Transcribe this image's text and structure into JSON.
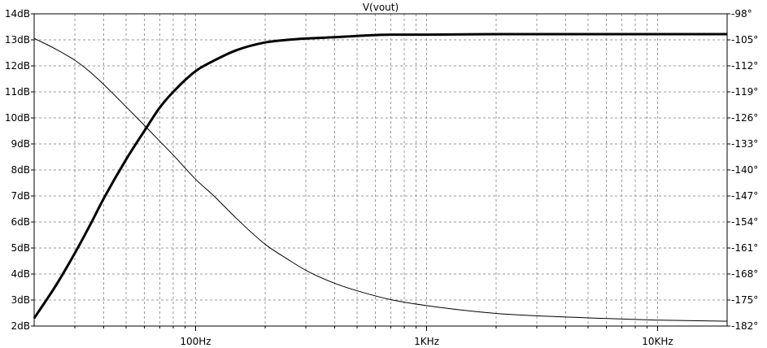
{
  "chart_data": {
    "type": "line",
    "title": "V(vout)",
    "x_scale": "log",
    "xlim": [
      20,
      20000
    ],
    "grid": true,
    "x_tick_labels": [
      {
        "value": 100,
        "label": "100Hz"
      },
      {
        "value": 1000,
        "label": "1KHz"
      },
      {
        "value": 10000,
        "label": "10KHz"
      }
    ],
    "y_left": {
      "ylim": [
        2,
        14
      ],
      "ticks": [
        2,
        3,
        4,
        5,
        6,
        7,
        8,
        9,
        10,
        11,
        12,
        13,
        14
      ],
      "tick_labels": [
        "2dB",
        "3dB",
        "4dB",
        "5dB",
        "6dB",
        "7dB",
        "8dB",
        "9dB",
        "10dB",
        "11dB",
        "12dB",
        "13dB",
        "14dB"
      ]
    },
    "y_right": {
      "ylim": [
        -182,
        -98
      ],
      "ticks": [
        -182,
        -175,
        -168,
        -161,
        -154,
        -147,
        -140,
        -133,
        -126,
        -119,
        -112,
        -105,
        -98
      ],
      "tick_labels": [
        "-182°",
        "-175°",
        "-168°",
        "-161°",
        "-154°",
        "-147°",
        "-140°",
        "-133°",
        "-126°",
        "-119°",
        "-112°",
        "-105°",
        "-98°"
      ]
    },
    "series": [
      {
        "axis": "left",
        "style": "thick",
        "x": [
          20,
          25,
          30,
          35,
          40,
          50,
          60,
          70,
          80,
          100,
          120,
          150,
          200,
          250,
          300,
          400,
          500,
          700,
          1000,
          2000,
          5000,
          10000,
          20000
        ],
        "y": [
          2.3,
          3.6,
          4.8,
          5.9,
          6.9,
          8.4,
          9.5,
          10.4,
          11.0,
          11.8,
          12.2,
          12.6,
          12.9,
          13.0,
          13.05,
          13.1,
          13.15,
          13.2,
          13.2,
          13.22,
          13.22,
          13.22,
          13.22
        ]
      },
      {
        "axis": "right",
        "style": "thin",
        "x": [
          20,
          25,
          30,
          35,
          40,
          50,
          60,
          70,
          80,
          100,
          120,
          150,
          200,
          250,
          300,
          400,
          500,
          700,
          1000,
          2000,
          5000,
          10000,
          20000
        ],
        "y": [
          -104.6,
          -107.6,
          -110.5,
          -113.7,
          -117.0,
          -123.0,
          -128.0,
          -132.3,
          -136.0,
          -142.5,
          -147.0,
          -153.0,
          -160.0,
          -164.0,
          -167.0,
          -170.5,
          -172.5,
          -174.9,
          -176.5,
          -178.6,
          -179.8,
          -180.4,
          -180.7
        ]
      }
    ]
  }
}
